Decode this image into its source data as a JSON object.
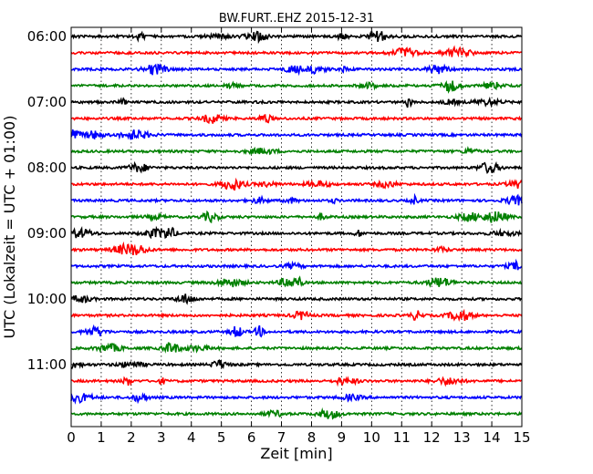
{
  "chart_data": {
    "type": "line",
    "title": "BW.FURT..EHZ 2015-12-31",
    "xlabel": "Zeit  [min]",
    "ylabel": "UTC (Lokalzeit = UTC + 01:00)",
    "xlim": [
      0,
      15
    ],
    "x_ticks": [
      "0",
      "1",
      "2",
      "3",
      "4",
      "5",
      "6",
      "7",
      "8",
      "9",
      "10",
      "11",
      "12",
      "13",
      "14",
      "15"
    ],
    "y_ticks": [
      "06:00",
      "07:00",
      "08:00",
      "09:00",
      "10:00",
      "11:00"
    ],
    "grid": "vertical-dotted",
    "row_interval_minutes": 15,
    "first_row_start": "06:00",
    "colors": [
      "#000000",
      "#ff0000",
      "#0000ff",
      "#008000"
    ],
    "series": [
      {
        "start": "06:00",
        "color": "#000000"
      },
      {
        "start": "06:15",
        "color": "#ff0000"
      },
      {
        "start": "06:30",
        "color": "#0000ff"
      },
      {
        "start": "06:45",
        "color": "#008000"
      },
      {
        "start": "07:00",
        "color": "#000000"
      },
      {
        "start": "07:15",
        "color": "#ff0000"
      },
      {
        "start": "07:30",
        "color": "#0000ff"
      },
      {
        "start": "07:45",
        "color": "#008000"
      },
      {
        "start": "08:00",
        "color": "#000000"
      },
      {
        "start": "08:15",
        "color": "#ff0000"
      },
      {
        "start": "08:30",
        "color": "#0000ff"
      },
      {
        "start": "08:45",
        "color": "#008000"
      },
      {
        "start": "09:00",
        "color": "#000000"
      },
      {
        "start": "09:15",
        "color": "#ff0000"
      },
      {
        "start": "09:30",
        "color": "#0000ff"
      },
      {
        "start": "09:45",
        "color": "#008000"
      },
      {
        "start": "10:00",
        "color": "#000000"
      },
      {
        "start": "10:15",
        "color": "#ff0000"
      },
      {
        "start": "10:30",
        "color": "#0000ff"
      },
      {
        "start": "10:45",
        "color": "#008000"
      },
      {
        "start": "11:00",
        "color": "#000000"
      },
      {
        "start": "11:15",
        "color": "#ff0000"
      },
      {
        "start": "11:30",
        "color": "#0000ff"
      },
      {
        "start": "11:45",
        "color": "#008000"
      }
    ]
  }
}
